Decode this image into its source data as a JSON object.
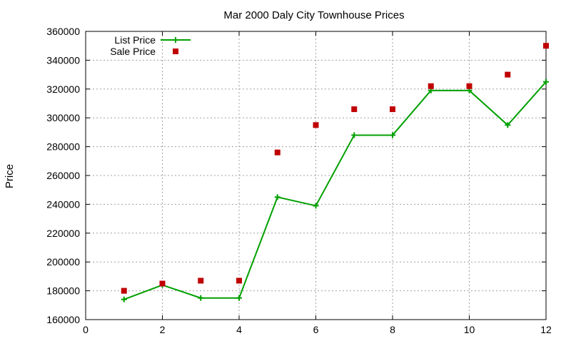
{
  "chart_data": {
    "type": "line",
    "title": "Mar 2000 Daly City Townhouse Prices",
    "xlabel": "",
    "ylabel": "Price",
    "xlim": [
      0,
      12
    ],
    "ylim": [
      160000,
      360000
    ],
    "xticks": [
      0,
      2,
      4,
      6,
      8,
      10,
      12
    ],
    "yticks": [
      160000,
      180000,
      200000,
      220000,
      240000,
      260000,
      280000,
      300000,
      320000,
      340000,
      360000
    ],
    "grid": true,
    "legend_position": "top-left",
    "series": [
      {
        "name": "List Price",
        "style": "line-with-plus-markers",
        "color": "#00a000",
        "x": [
          1,
          2,
          3,
          4,
          5,
          6,
          7,
          8,
          9,
          10,
          11,
          12
        ],
        "y": [
          174000,
          184000,
          175000,
          175000,
          245000,
          239000,
          288000,
          288000,
          319000,
          319000,
          295000,
          325000
        ]
      },
      {
        "name": "Sale Price",
        "style": "square-markers",
        "color": "#c00000",
        "x": [
          1,
          2,
          3,
          4,
          5,
          6,
          7,
          8,
          9,
          10,
          11,
          12
        ],
        "y": [
          180000,
          185000,
          187000,
          187000,
          276000,
          295000,
          306000,
          306000,
          322000,
          322000,
          330000,
          350000
        ]
      }
    ]
  }
}
